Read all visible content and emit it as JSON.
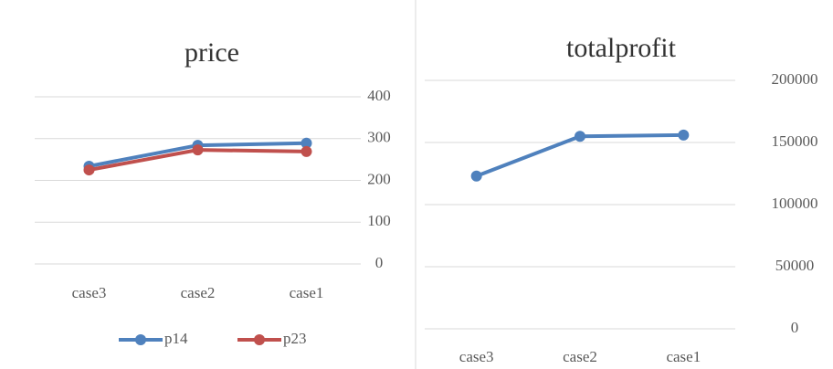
{
  "chart_data": [
    {
      "type": "line",
      "title": "price",
      "categories": [
        "case3",
        "case2",
        "case1"
      ],
      "series": [
        {
          "name": "p14",
          "color": "#4f81bd",
          "values": [
            234,
            284,
            289
          ]
        },
        {
          "name": "p23",
          "color": "#c0504d",
          "values": [
            225,
            273,
            269
          ]
        }
      ],
      "ylim": [
        0,
        400
      ],
      "yticks": [
        0,
        100,
        200,
        300,
        400
      ],
      "grid": true,
      "legend": "bottom"
    },
    {
      "type": "line",
      "title": "totalprofit",
      "categories": [
        "case3",
        "case2",
        "case1"
      ],
      "series": [
        {
          "color": "#4f81bd",
          "values": [
            123000,
            155000,
            156000
          ]
        }
      ],
      "ylim": [
        0,
        200000
      ],
      "yticks": [
        0,
        50000,
        100000,
        150000,
        200000
      ],
      "grid": true
    }
  ]
}
